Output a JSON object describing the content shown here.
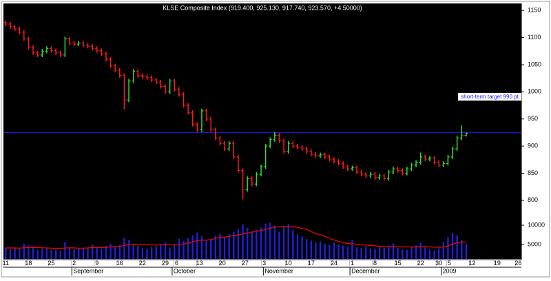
{
  "chart_data": [
    {
      "type": "ohlc",
      "title": "KLSE Composite Index (919.400, 925.130, 917.740, 923.570, +4.50000)",
      "up_color": "#33dd33",
      "down_color": "#ff1a1a",
      "open": [
        1128,
        1125,
        1120,
        1116,
        1110,
        1098,
        1082,
        1072,
        1068,
        1075,
        1080,
        1076,
        1072,
        1068,
        1098,
        1090,
        1088,
        1090,
        1086,
        1084,
        1080,
        1076,
        1070,
        1060,
        1048,
        1040,
        1030,
        985,
        1020,
        1038,
        1030,
        1028,
        1026,
        1022,
        1018,
        1010,
        1000,
        1020,
        1005,
        995,
        975,
        962,
        940,
        930,
        965,
        950,
        930,
        915,
        905,
        895,
        905,
        880,
        855,
        820,
        840,
        830,
        848,
        862,
        900,
        912,
        920,
        910,
        890,
        905,
        900,
        898,
        895,
        890,
        885,
        882,
        884,
        880,
        876,
        872,
        868,
        862,
        858,
        860,
        852,
        848,
        845,
        848,
        842,
        845,
        840,
        852,
        858,
        855,
        850,
        858,
        865,
        870,
        880,
        876,
        878,
        870,
        865,
        868,
        880,
        895,
        915,
        919.4
      ],
      "high": [
        1132,
        1129,
        1124,
        1120,
        1114,
        1102,
        1086,
        1076,
        1079,
        1084,
        1084,
        1080,
        1076,
        1102,
        1102,
        1094,
        1094,
        1094,
        1090,
        1088,
        1084,
        1080,
        1074,
        1064,
        1052,
        1044,
        1034,
        1024,
        1042,
        1042,
        1034,
        1032,
        1030,
        1026,
        1022,
        1014,
        1024,
        1024,
        1009,
        999,
        979,
        966,
        944,
        969,
        969,
        954,
        934,
        919,
        909,
        909,
        909,
        884,
        859,
        844,
        844,
        852,
        866,
        904,
        916,
        926,
        924,
        914,
        909,
        909,
        904,
        902,
        899,
        894,
        889,
        888,
        888,
        884,
        880,
        876,
        872,
        866,
        864,
        864,
        856,
        852,
        852,
        852,
        849,
        849,
        856,
        862,
        862,
        859,
        862,
        869,
        874,
        888,
        884,
        882,
        882,
        874,
        872,
        884,
        899,
        919,
        938,
        925.13
      ],
      "low": [
        1121,
        1116,
        1112,
        1106,
        1094,
        1078,
        1068,
        1064,
        1064,
        1071,
        1072,
        1068,
        1064,
        1064,
        1086,
        1084,
        1084,
        1082,
        1080,
        1076,
        1072,
        1066,
        1056,
        1044,
        1036,
        1026,
        968,
        981,
        1016,
        1026,
        1024,
        1022,
        1018,
        1014,
        1006,
        996,
        996,
        1001,
        991,
        971,
        958,
        936,
        926,
        926,
        946,
        926,
        911,
        901,
        891,
        891,
        876,
        851,
        802,
        816,
        826,
        826,
        844,
        858,
        896,
        908,
        906,
        886,
        886,
        896,
        894,
        891,
        886,
        881,
        878,
        878,
        876,
        872,
        868,
        864,
        858,
        854,
        854,
        848,
        844,
        841,
        841,
        838,
        838,
        836,
        836,
        848,
        851,
        846,
        846,
        854,
        861,
        866,
        872,
        872,
        866,
        861,
        861,
        864,
        876,
        891,
        911,
        917.74
      ],
      "close": [
        1125,
        1120,
        1116,
        1110,
        1098,
        1082,
        1072,
        1068,
        1075,
        1080,
        1076,
        1072,
        1068,
        1098,
        1090,
        1088,
        1090,
        1086,
        1084,
        1080,
        1076,
        1070,
        1060,
        1048,
        1040,
        1030,
        985,
        1020,
        1038,
        1030,
        1028,
        1026,
        1022,
        1018,
        1010,
        1000,
        1020,
        1005,
        995,
        975,
        962,
        940,
        930,
        965,
        950,
        930,
        915,
        905,
        895,
        905,
        880,
        855,
        820,
        840,
        830,
        848,
        862,
        900,
        912,
        920,
        910,
        890,
        905,
        900,
        898,
        895,
        890,
        885,
        882,
        884,
        880,
        876,
        872,
        868,
        862,
        858,
        860,
        852,
        848,
        845,
        848,
        842,
        845,
        840,
        852,
        858,
        855,
        850,
        858,
        865,
        870,
        880,
        876,
        878,
        870,
        865,
        868,
        880,
        895,
        915,
        919.07,
        923.57
      ],
      "ylim": [
        763,
        1163
      ],
      "yticks": [
        800,
        850,
        900,
        950,
        1000,
        1050,
        1100,
        1150
      ],
      "xlim": [
        -0.5,
        113.1
      ],
      "xticks": [
        {
          "value": 0,
          "label": "11"
        },
        {
          "value": 5,
          "label": "18"
        },
        {
          "value": 10,
          "label": "25"
        },
        {
          "value": 15,
          "label": "2"
        },
        {
          "value": 20,
          "label": "9"
        },
        {
          "value": 25,
          "label": "16"
        },
        {
          "value": 30,
          "label": "22"
        },
        {
          "value": 35,
          "label": "29"
        },
        {
          "value": 37.5,
          "label": "6"
        },
        {
          "value": 42.5,
          "label": "13"
        },
        {
          "value": 47.5,
          "label": "20"
        },
        {
          "value": 52.5,
          "label": "27"
        },
        {
          "value": 56.7,
          "label": "3"
        },
        {
          "value": 62,
          "label": "10"
        },
        {
          "value": 67,
          "label": "17"
        },
        {
          "value": 72,
          "label": "24"
        },
        {
          "value": 76,
          "label": "1"
        },
        {
          "value": 81,
          "label": "8"
        },
        {
          "value": 86,
          "label": "15"
        },
        {
          "value": 91,
          "label": "22"
        },
        {
          "value": 95,
          "label": "30"
        },
        {
          "value": 97.3,
          "label": "5"
        },
        {
          "value": 102.3,
          "label": "12"
        },
        {
          "value": 107.8,
          "label": "19"
        },
        {
          "value": 112.4,
          "label": "26"
        }
      ],
      "month_ticks": [
        {
          "value": 14.5,
          "label": "September"
        },
        {
          "value": 36.5,
          "label": "October"
        },
        {
          "value": 56.5,
          "label": "November"
        },
        {
          "value": 75.5,
          "label": "December"
        },
        {
          "value": 95.5,
          "label": "2009"
        }
      ],
      "reference_line": {
        "value": 925,
        "color": "#1c1cff"
      },
      "annotation": "short-term target 990 pt"
    },
    {
      "type": "bar",
      "color": "#2020d8",
      "values": [
        4200,
        3800,
        4100,
        3900,
        5200,
        4800,
        4500,
        3600,
        3900,
        4000,
        3500,
        3700,
        3400,
        5600,
        4300,
        3800,
        4000,
        3900,
        4100,
        5000,
        4400,
        3900,
        4700,
        5200,
        4300,
        4900,
        6800,
        6200,
        5000,
        4600,
        4100,
        3800,
        4300,
        4600,
        5100,
        5500,
        4200,
        4800,
        6500,
        5900,
        6800,
        7400,
        8100,
        7200,
        6000,
        6400,
        7300,
        7800,
        6900,
        7600,
        8200,
        9100,
        10200,
        9300,
        8400,
        8800,
        9400,
        10400,
        10600,
        9900,
        8300,
        9500,
        10300,
        8700,
        7600,
        7100,
        6400,
        6000,
        5500,
        5800,
        5200,
        4900,
        5600,
        5100,
        4700,
        4500,
        6200,
        4300,
        4100,
        4600,
        4000,
        3900,
        4400,
        4200,
        4700,
        5300,
        4100,
        3800,
        3600,
        4500,
        4800,
        5400,
        4300,
        3700,
        3500,
        4000,
        5600,
        6900,
        8000,
        7400,
        6100,
        5200
      ],
      "average": {
        "color": "#ff0000",
        "values": [
          4100,
          4100,
          4100,
          4050,
          4150,
          4200,
          4250,
          4200,
          4150,
          4100,
          4050,
          4000,
          3950,
          4100,
          4150,
          4100,
          4050,
          4050,
          4100,
          4200,
          4250,
          4200,
          4250,
          4400,
          4400,
          4500,
          4750,
          4950,
          5000,
          5050,
          5000,
          4950,
          4900,
          4850,
          4950,
          5050,
          4950,
          4900,
          5050,
          5150,
          5400,
          5700,
          6000,
          6150,
          6150,
          6250,
          6550,
          6850,
          6900,
          7100,
          7300,
          7500,
          7750,
          7950,
          8200,
          8450,
          8650,
          8900,
          9250,
          9500,
          9600,
          9700,
          9700,
          9650,
          9450,
          9150,
          8850,
          8400,
          7900,
          7500,
          7100,
          6650,
          6150,
          5800,
          5500,
          5250,
          5200,
          5050,
          4900,
          4850,
          4750,
          4650,
          4550,
          4450,
          4450,
          4450,
          4400,
          4400,
          4350,
          4350,
          4400,
          4450,
          4450,
          4400,
          4300,
          4250,
          4350,
          4650,
          5050,
          5500,
          5700,
          5600
        ]
      },
      "ylim": [
        1250,
        11250
      ],
      "yticks": [
        5000,
        10000
      ]
    }
  ]
}
